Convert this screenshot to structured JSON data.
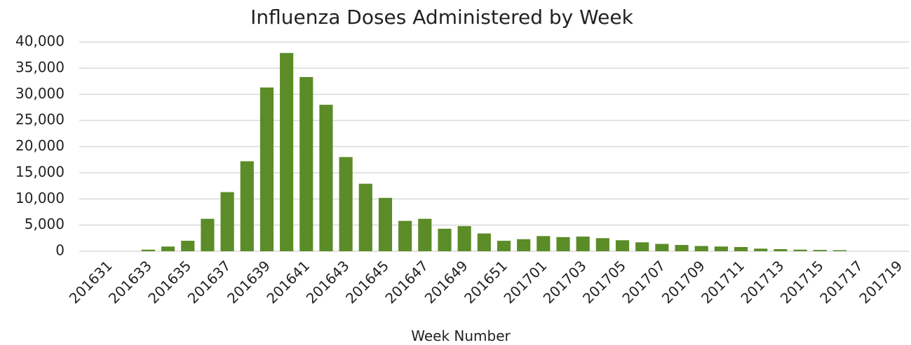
{
  "chart_data": {
    "type": "bar",
    "title": "Influenza Doses Administered by Week",
    "x_label": "Week Number",
    "categories": [
      "201631",
      null,
      "201633",
      null,
      "201635",
      null,
      "201637",
      null,
      "201639",
      null,
      "201641",
      null,
      "201643",
      null,
      "201645",
      null,
      "201647",
      null,
      "201649",
      null,
      "201651",
      null,
      "201701",
      null,
      "201703",
      null,
      "201705",
      null,
      "201707",
      null,
      "201709",
      null,
      "201711",
      null,
      "201713",
      null,
      "201715",
      null,
      "201717",
      null,
      "201719"
    ],
    "values": [
      0,
      0,
      300,
      900,
      2000,
      6200,
      11300,
      17200,
      31300,
      37900,
      33300,
      28000,
      18000,
      12900,
      10200,
      5800,
      6200,
      4300,
      4800,
      3400,
      2000,
      2300,
      2900,
      2700,
      2800,
      2500,
      2100,
      1700,
      1400,
      1200,
      1000,
      900,
      800,
      500,
      400,
      300,
      250,
      200,
      0,
      0,
      0
    ],
    "color": "#5b8c28",
    "ylim": [
      0,
      40000
    ],
    "yticks": [
      0,
      {
        "value": 5000,
        "label": "5,000"
      },
      {
        "value": 10000,
        "label": "10,000"
      },
      {
        "value": 15000,
        "label": "15,000"
      },
      {
        "value": 20000,
        "label": "20,000"
      },
      {
        "value": 25000,
        "label": "25,000"
      },
      {
        "value": 30000,
        "label": "30,000"
      },
      {
        "value": 35000,
        "label": "35,000"
      },
      {
        "value": 40000,
        "label": "40,000"
      }
    ],
    "grid": true
  }
}
